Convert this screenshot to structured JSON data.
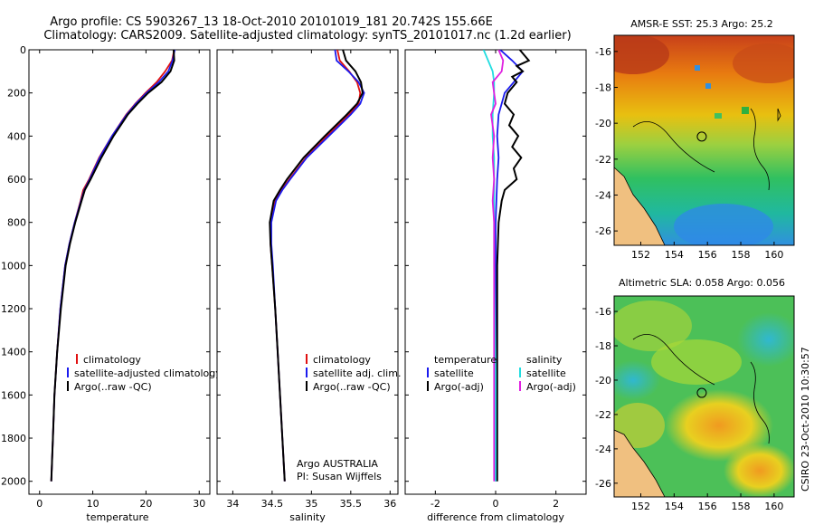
{
  "title": {
    "line1": "Argo profile: CS 5903267_13 18-Oct-2010 20101019_181 20.742S 155.66E",
    "line2": "Climatology: CARS2009. Satellite-adjusted climatology: synTS_20101017.nc (1.2d earlier)"
  },
  "stamp": "CSIRO 23-Oct-2010 10:30:57",
  "colors": {
    "climatology": "#e01010",
    "satellite": "#1a1aee",
    "argo": "#000000",
    "sal_satellite": "#22dde0",
    "sal_argo": "#e020e0"
  },
  "depth_ticks": [
    0,
    200,
    400,
    600,
    800,
    1000,
    1200,
    1400,
    1600,
    1800,
    2000
  ],
  "chart_data": [
    {
      "type": "line",
      "id": "temperature",
      "xlabel": "temperature",
      "ylabel": "",
      "xlim": [
        -2,
        32
      ],
      "ylim": [
        2060,
        0
      ],
      "xticks": [
        0,
        10,
        20,
        30
      ],
      "legend": [
        "climatology",
        "satellite-adjusted climatology",
        "Argo(..raw -QC)"
      ],
      "series": [
        {
          "name": "climatology",
          "color": "#e01010",
          "depth": [
            0,
            50,
            100,
            150,
            200,
            250,
            300,
            400,
            500,
            600,
            650,
            700,
            800,
            900,
            1000,
            1200,
            1400,
            1600,
            1800,
            2000
          ],
          "values": [
            25.3,
            24.9,
            23.6,
            22.0,
            19.9,
            18.0,
            16.3,
            13.6,
            11.2,
            9.3,
            8.2,
            7.7,
            6.6,
            5.6,
            4.8,
            3.9,
            3.3,
            2.8,
            2.5,
            2.2
          ]
        },
        {
          "name": "satellite-adjusted climatology",
          "color": "#1a1aee",
          "depth": [
            0,
            50,
            100,
            150,
            200,
            250,
            300,
            400,
            500,
            600,
            650,
            700,
            800,
            900,
            1000,
            1200,
            1400,
            1600,
            1800,
            2000
          ],
          "values": [
            25.4,
            25.0,
            24.2,
            22.4,
            20.1,
            18.1,
            16.4,
            13.6,
            11.3,
            9.4,
            8.4,
            7.8,
            6.6,
            5.6,
            4.8,
            3.9,
            3.3,
            2.8,
            2.5,
            2.2
          ]
        },
        {
          "name": "Argo(..raw -QC)",
          "color": "#000000",
          "depth": [
            0,
            50,
            100,
            150,
            200,
            250,
            300,
            400,
            500,
            600,
            650,
            700,
            800,
            900,
            1000,
            1200,
            1400,
            1600,
            1800,
            2000
          ],
          "values": [
            25.2,
            25.3,
            24.6,
            22.9,
            20.4,
            18.4,
            16.6,
            13.9,
            11.6,
            9.6,
            8.5,
            7.9,
            6.7,
            5.7,
            4.9,
            4.0,
            3.3,
            2.8,
            2.5,
            2.2
          ]
        }
      ]
    },
    {
      "type": "line",
      "id": "salinity",
      "xlabel": "salinity",
      "ylabel": "",
      "xlim": [
        33.8,
        36.1
      ],
      "ylim": [
        2060,
        0
      ],
      "xticks": [
        34,
        34.5,
        35,
        35.5,
        36
      ],
      "legend": [
        "climatology",
        "satellite adj. clim.",
        "Argo(..raw -QC)"
      ],
      "series": [
        {
          "name": "climatology",
          "color": "#e01010",
          "depth": [
            0,
            50,
            100,
            150,
            200,
            250,
            300,
            400,
            500,
            600,
            650,
            700,
            800,
            900,
            1000,
            1200,
            1400,
            1600,
            1800,
            2000
          ],
          "values": [
            35.33,
            35.36,
            35.48,
            35.58,
            35.62,
            35.6,
            35.48,
            35.2,
            34.93,
            34.72,
            34.62,
            34.54,
            34.48,
            34.48,
            34.5,
            34.54,
            34.57,
            34.6,
            34.63,
            34.66
          ]
        },
        {
          "name": "satellite adj. clim.",
          "color": "#1a1aee",
          "depth": [
            0,
            50,
            100,
            150,
            200,
            250,
            300,
            400,
            500,
            600,
            650,
            700,
            800,
            900,
            1000,
            1200,
            1400,
            1600,
            1800,
            2000
          ],
          "values": [
            35.3,
            35.32,
            35.47,
            35.6,
            35.67,
            35.62,
            35.5,
            35.22,
            34.94,
            34.73,
            34.63,
            34.55,
            34.49,
            34.49,
            34.51,
            34.54,
            34.57,
            34.6,
            34.63,
            34.66
          ]
        },
        {
          "name": "Argo(..raw -QC)",
          "color": "#000000",
          "depth": [
            0,
            50,
            100,
            150,
            200,
            250,
            300,
            400,
            500,
            600,
            650,
            700,
            800,
            900,
            1000,
            1200,
            1400,
            1600,
            1800,
            2000
          ],
          "values": [
            35.4,
            35.44,
            35.56,
            35.63,
            35.65,
            35.58,
            35.45,
            35.17,
            34.9,
            34.69,
            34.6,
            34.52,
            34.47,
            34.48,
            34.5,
            34.54,
            34.57,
            34.6,
            34.63,
            34.66
          ]
        }
      ],
      "annotation": [
        "Argo AUSTRALIA",
        "PI: Susan Wijffels"
      ]
    },
    {
      "type": "line",
      "id": "difference",
      "xlabel": "difference from climatology",
      "ylabel": "",
      "xlim": [
        -3,
        3
      ],
      "ylim": [
        2060,
        0
      ],
      "xticks": [
        -2,
        0,
        2
      ],
      "legend": [
        "temperature",
        "satellite",
        "Argo(-adj)",
        "salinity",
        "satellite",
        "Argo(-adj)"
      ],
      "series": [
        {
          "name": "temperature satellite",
          "color": "#1a1aee",
          "depth": [
            0,
            50,
            100,
            150,
            200,
            300,
            400,
            500,
            600,
            800,
            1000,
            1500,
            2000
          ],
          "values": [
            0.15,
            0.55,
            0.9,
            0.6,
            0.3,
            0.1,
            0.05,
            0.1,
            0.05,
            0.0,
            0.0,
            0.0,
            0.0
          ]
        },
        {
          "name": "temperature Argo(-adj)",
          "color": "#000000",
          "depth": [
            0,
            25,
            50,
            75,
            100,
            125,
            150,
            200,
            250,
            300,
            350,
            400,
            450,
            500,
            550,
            600,
            650,
            700,
            800,
            1000,
            1200,
            1500,
            2000
          ],
          "values": [
            0.8,
            0.95,
            1.1,
            0.7,
            0.9,
            0.55,
            0.7,
            0.4,
            0.3,
            0.6,
            0.45,
            0.75,
            0.55,
            0.85,
            0.6,
            0.7,
            0.3,
            0.2,
            0.1,
            0.05,
            0.05,
            0.05,
            0.05
          ]
        },
        {
          "name": "salinity satellite",
          "color": "#22dde0",
          "depth": [
            0,
            50,
            100,
            150,
            200,
            300,
            400,
            500,
            700,
            1000,
            1500,
            2000
          ],
          "values": [
            -0.4,
            -0.25,
            -0.1,
            -0.05,
            -0.05,
            -0.1,
            -0.1,
            -0.05,
            -0.05,
            -0.05,
            0.0,
            0.0
          ]
        },
        {
          "name": "salinity Argo(-adj)",
          "color": "#e020e0",
          "depth": [
            0,
            50,
            100,
            150,
            200,
            250,
            300,
            400,
            500,
            600,
            700,
            800,
            1000,
            1500,
            2000
          ],
          "values": [
            0.1,
            0.25,
            0.2,
            -0.1,
            -0.05,
            0.0,
            -0.15,
            -0.05,
            -0.1,
            -0.05,
            -0.1,
            -0.05,
            -0.05,
            -0.05,
            -0.05
          ]
        }
      ]
    },
    {
      "type": "heatmap",
      "id": "sst-map",
      "title": "AMSR-E SST: 25.3 Argo: 25.2",
      "xlim": [
        150.4,
        161.2
      ],
      "ylim": [
        -26.8,
        -15.1
      ],
      "xticks": [
        152,
        154,
        156,
        158,
        160
      ],
      "yticks": [
        -16,
        -18,
        -20,
        -22,
        -24,
        -26
      ],
      "profile_location": [
        155.66,
        -20.742
      ]
    },
    {
      "type": "heatmap",
      "id": "sla-map",
      "title": "Altimetric SLA: 0.058 Argo: 0.056",
      "xlim": [
        150.4,
        161.2
      ],
      "ylim": [
        -26.8,
        -15.1
      ],
      "xticks": [
        152,
        154,
        156,
        158,
        160
      ],
      "yticks": [
        -16,
        -18,
        -20,
        -22,
        -24,
        -26
      ],
      "profile_location": [
        155.66,
        -20.742
      ]
    }
  ]
}
